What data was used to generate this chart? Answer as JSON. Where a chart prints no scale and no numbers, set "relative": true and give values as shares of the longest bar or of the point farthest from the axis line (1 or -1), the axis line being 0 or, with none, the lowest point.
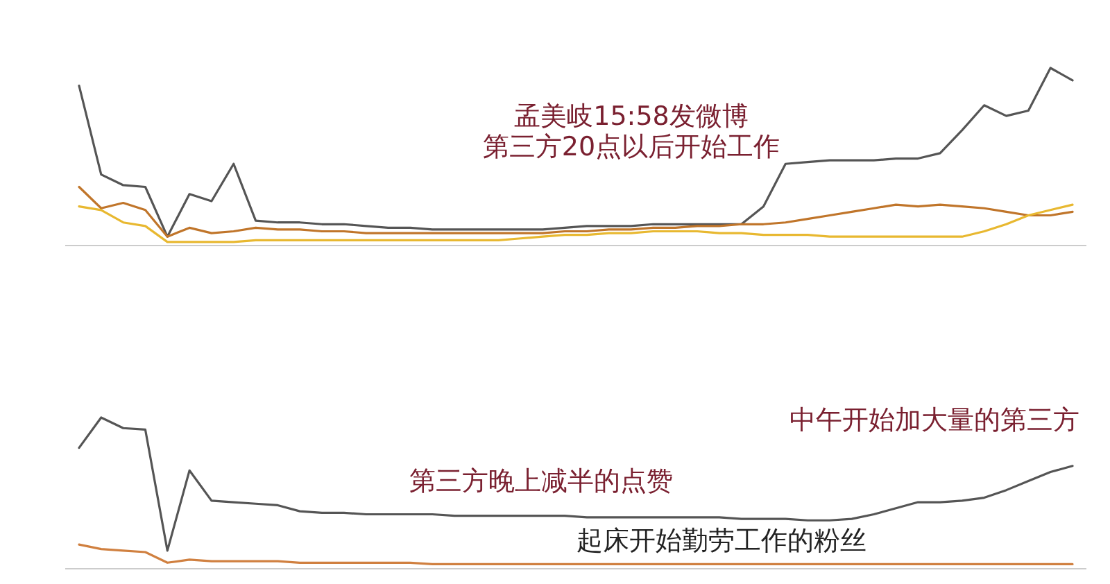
{
  "chart_data": [
    {
      "type": "line",
      "relative": true,
      "categories": [
        null,
        null,
        null,
        null,
        null,
        null,
        null,
        null,
        null,
        null,
        null,
        null,
        null,
        null,
        null,
        null,
        null,
        null,
        null,
        null,
        null,
        null,
        null,
        null,
        null,
        null,
        null,
        null,
        null,
        null,
        null,
        null,
        null,
        null,
        null,
        null,
        null,
        null,
        null,
        null,
        null,
        null,
        null,
        null,
        null,
        null
      ],
      "series": [
        {
          "color": "#555555",
          "values": [
            0.9,
            0.4,
            0.34,
            0.33,
            0.05,
            0.29,
            0.25,
            0.46,
            0.14,
            0.13,
            0.13,
            0.12,
            0.12,
            0.11,
            0.1,
            0.1,
            0.09,
            0.09,
            0.09,
            0.09,
            0.09,
            0.09,
            0.1,
            0.11,
            0.11,
            0.11,
            0.12,
            0.12,
            0.12,
            0.12,
            0.12,
            0.22,
            0.46,
            0.47,
            0.48,
            0.48,
            0.48,
            0.49,
            0.49,
            0.52,
            0.65,
            0.79,
            0.73,
            0.76,
            1.0,
            0.93
          ]
        },
        {
          "color": "#c0752a",
          "values": [
            0.33,
            0.21,
            0.24,
            0.2,
            0.05,
            0.1,
            0.07,
            0.08,
            0.1,
            0.09,
            0.09,
            0.08,
            0.08,
            0.07,
            0.07,
            0.07,
            0.07,
            0.07,
            0.07,
            0.07,
            0.07,
            0.07,
            0.08,
            0.08,
            0.09,
            0.09,
            0.1,
            0.1,
            0.11,
            0.11,
            0.12,
            0.12,
            0.13,
            0.15,
            0.17,
            0.19,
            0.21,
            0.23,
            0.22,
            0.23,
            0.22,
            0.21,
            0.19,
            0.17,
            0.17,
            0.19
          ]
        },
        {
          "color": "#e8b830",
          "values": [
            0.22,
            0.2,
            0.13,
            0.11,
            0.02,
            0.02,
            0.02,
            0.02,
            0.03,
            0.03,
            0.03,
            0.03,
            0.03,
            0.03,
            0.03,
            0.03,
            0.03,
            0.03,
            0.03,
            0.03,
            0.04,
            0.05,
            0.06,
            0.06,
            0.07,
            0.07,
            0.08,
            0.08,
            0.08,
            0.07,
            0.07,
            0.06,
            0.06,
            0.06,
            0.05,
            0.05,
            0.05,
            0.05,
            0.05,
            0.05,
            0.05,
            0.08,
            0.12,
            0.17,
            0.2,
            0.23
          ]
        }
      ],
      "annotations": [
        "孟美岐15:58发微博",
        "第三方20点以后开始工作"
      ]
    },
    {
      "type": "line",
      "relative": true,
      "categories": [
        null,
        null,
        null,
        null,
        null,
        null,
        null,
        null,
        null,
        null,
        null,
        null,
        null,
        null,
        null,
        null,
        null,
        null,
        null,
        null,
        null,
        null,
        null,
        null,
        null,
        null,
        null,
        null,
        null,
        null,
        null,
        null,
        null,
        null,
        null,
        null,
        null,
        null,
        null,
        null,
        null,
        null,
        null,
        null,
        null,
        null
      ],
      "series": [
        {
          "color": "#555555",
          "values": [
            0.8,
            1.0,
            0.93,
            0.92,
            0.12,
            0.65,
            0.45,
            0.44,
            0.43,
            0.42,
            0.38,
            0.37,
            0.37,
            0.36,
            0.36,
            0.36,
            0.36,
            0.35,
            0.35,
            0.35,
            0.35,
            0.35,
            0.35,
            0.34,
            0.34,
            0.34,
            0.34,
            0.34,
            0.34,
            0.34,
            0.33,
            0.33,
            0.33,
            0.32,
            0.32,
            0.33,
            0.36,
            0.4,
            0.44,
            0.44,
            0.45,
            0.47,
            0.52,
            0.58,
            0.64,
            0.68
          ]
        },
        {
          "color": "#d08040",
          "values": [
            0.16,
            0.13,
            0.12,
            0.11,
            0.04,
            0.06,
            0.05,
            0.05,
            0.05,
            0.05,
            0.04,
            0.04,
            0.04,
            0.04,
            0.04,
            0.04,
            0.03,
            0.03,
            0.03,
            0.03,
            0.03,
            0.03,
            0.03,
            0.03,
            0.03,
            0.03,
            0.03,
            0.03,
            0.03,
            0.03,
            0.03,
            0.03,
            0.03,
            0.03,
            0.03,
            0.03,
            0.03,
            0.03,
            0.03,
            0.03,
            0.03,
            0.03,
            0.03,
            0.03,
            0.03,
            0.03
          ]
        }
      ],
      "annotations": [
        "中午开始加大量的第三方",
        "第三方晚上减半的点赞",
        "起床开始勤劳工作的粉丝"
      ]
    }
  ]
}
